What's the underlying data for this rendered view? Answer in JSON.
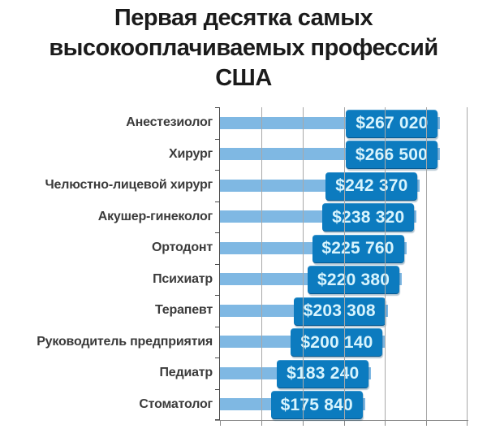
{
  "chart_data": {
    "type": "bar",
    "orientation": "horizontal",
    "title": "Первая десятка самых высокооплачиваемых профессий США",
    "title_lines": [
      "Первая десятка самых",
      "высокооплачиваемых профессий",
      "США"
    ],
    "categories": [
      "Анестезиолог",
      "Хирург",
      "Челюстно-лицевой хирург",
      "Акушер-гинеколог",
      "Ортодонт",
      "Психиатр",
      "Терапевт",
      "Руководитель предприятия",
      "Педиатр",
      "Стоматолог"
    ],
    "values": [
      267020,
      266500,
      242370,
      238320,
      225760,
      220380,
      203308,
      200140,
      183240,
      175840
    ],
    "value_labels": [
      "$267 020",
      "$266 500",
      "$242 370",
      "$238 320",
      "$225 760",
      "$220 380",
      "$203 308",
      "$200 140",
      "$183 240",
      "$175 840"
    ],
    "currency": "USD",
    "xlim": [
      0,
      300000
    ],
    "grid": true,
    "gridline_step": 50000,
    "legend": "none",
    "colors": {
      "bar": "#7FB8E3",
      "value_box": "#0C7BBF",
      "value_text": "#D8F4FD",
      "gridline": "#A8A8A8",
      "axis_left": "#4A4A4A",
      "axis_bottom": "#8C8C8C",
      "category_text": "#3B3B3B",
      "title_text": "#1B1B1B",
      "background": "#FFFFFF"
    }
  }
}
